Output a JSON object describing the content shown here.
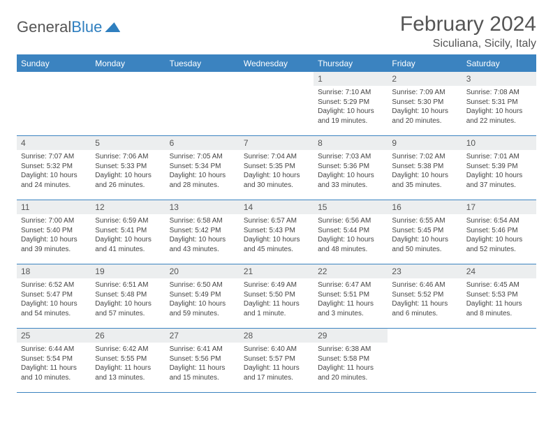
{
  "logo": {
    "textA": "General",
    "textB": "Blue"
  },
  "title": {
    "month": "February 2024",
    "location": "Siculiana, Sicily, Italy"
  },
  "style": {
    "accent": "#3b83c0",
    "headerBg": "#3b83c0",
    "headerText": "#ffffff",
    "dayNumBg": "#eceeef",
    "bodyText": "#444444",
    "pageBg": "#ffffff",
    "fontSizeTitle": 30,
    "fontSizeLoc": 16,
    "fontSizeHead": 12,
    "fontSizeDayNum": 12,
    "fontSizeBody": 10
  },
  "weekdays": [
    "Sunday",
    "Monday",
    "Tuesday",
    "Wednesday",
    "Thursday",
    "Friday",
    "Saturday"
  ],
  "firstDayOffset": 4,
  "days": [
    {
      "n": 1,
      "sunrise": "7:10 AM",
      "sunset": "5:29 PM",
      "daylight": "10 hours and 19 minutes."
    },
    {
      "n": 2,
      "sunrise": "7:09 AM",
      "sunset": "5:30 PM",
      "daylight": "10 hours and 20 minutes."
    },
    {
      "n": 3,
      "sunrise": "7:08 AM",
      "sunset": "5:31 PM",
      "daylight": "10 hours and 22 minutes."
    },
    {
      "n": 4,
      "sunrise": "7:07 AM",
      "sunset": "5:32 PM",
      "daylight": "10 hours and 24 minutes."
    },
    {
      "n": 5,
      "sunrise": "7:06 AM",
      "sunset": "5:33 PM",
      "daylight": "10 hours and 26 minutes."
    },
    {
      "n": 6,
      "sunrise": "7:05 AM",
      "sunset": "5:34 PM",
      "daylight": "10 hours and 28 minutes."
    },
    {
      "n": 7,
      "sunrise": "7:04 AM",
      "sunset": "5:35 PM",
      "daylight": "10 hours and 30 minutes."
    },
    {
      "n": 8,
      "sunrise": "7:03 AM",
      "sunset": "5:36 PM",
      "daylight": "10 hours and 33 minutes."
    },
    {
      "n": 9,
      "sunrise": "7:02 AM",
      "sunset": "5:38 PM",
      "daylight": "10 hours and 35 minutes."
    },
    {
      "n": 10,
      "sunrise": "7:01 AM",
      "sunset": "5:39 PM",
      "daylight": "10 hours and 37 minutes."
    },
    {
      "n": 11,
      "sunrise": "7:00 AM",
      "sunset": "5:40 PM",
      "daylight": "10 hours and 39 minutes."
    },
    {
      "n": 12,
      "sunrise": "6:59 AM",
      "sunset": "5:41 PM",
      "daylight": "10 hours and 41 minutes."
    },
    {
      "n": 13,
      "sunrise": "6:58 AM",
      "sunset": "5:42 PM",
      "daylight": "10 hours and 43 minutes."
    },
    {
      "n": 14,
      "sunrise": "6:57 AM",
      "sunset": "5:43 PM",
      "daylight": "10 hours and 45 minutes."
    },
    {
      "n": 15,
      "sunrise": "6:56 AM",
      "sunset": "5:44 PM",
      "daylight": "10 hours and 48 minutes."
    },
    {
      "n": 16,
      "sunrise": "6:55 AM",
      "sunset": "5:45 PM",
      "daylight": "10 hours and 50 minutes."
    },
    {
      "n": 17,
      "sunrise": "6:54 AM",
      "sunset": "5:46 PM",
      "daylight": "10 hours and 52 minutes."
    },
    {
      "n": 18,
      "sunrise": "6:52 AM",
      "sunset": "5:47 PM",
      "daylight": "10 hours and 54 minutes."
    },
    {
      "n": 19,
      "sunrise": "6:51 AM",
      "sunset": "5:48 PM",
      "daylight": "10 hours and 57 minutes."
    },
    {
      "n": 20,
      "sunrise": "6:50 AM",
      "sunset": "5:49 PM",
      "daylight": "10 hours and 59 minutes."
    },
    {
      "n": 21,
      "sunrise": "6:49 AM",
      "sunset": "5:50 PM",
      "daylight": "11 hours and 1 minute."
    },
    {
      "n": 22,
      "sunrise": "6:47 AM",
      "sunset": "5:51 PM",
      "daylight": "11 hours and 3 minutes."
    },
    {
      "n": 23,
      "sunrise": "6:46 AM",
      "sunset": "5:52 PM",
      "daylight": "11 hours and 6 minutes."
    },
    {
      "n": 24,
      "sunrise": "6:45 AM",
      "sunset": "5:53 PM",
      "daylight": "11 hours and 8 minutes."
    },
    {
      "n": 25,
      "sunrise": "6:44 AM",
      "sunset": "5:54 PM",
      "daylight": "11 hours and 10 minutes."
    },
    {
      "n": 26,
      "sunrise": "6:42 AM",
      "sunset": "5:55 PM",
      "daylight": "11 hours and 13 minutes."
    },
    {
      "n": 27,
      "sunrise": "6:41 AM",
      "sunset": "5:56 PM",
      "daylight": "11 hours and 15 minutes."
    },
    {
      "n": 28,
      "sunrise": "6:40 AM",
      "sunset": "5:57 PM",
      "daylight": "11 hours and 17 minutes."
    },
    {
      "n": 29,
      "sunrise": "6:38 AM",
      "sunset": "5:58 PM",
      "daylight": "11 hours and 20 minutes."
    }
  ],
  "labels": {
    "sunrise": "Sunrise: ",
    "sunset": "Sunset: ",
    "daylight": "Daylight: "
  }
}
